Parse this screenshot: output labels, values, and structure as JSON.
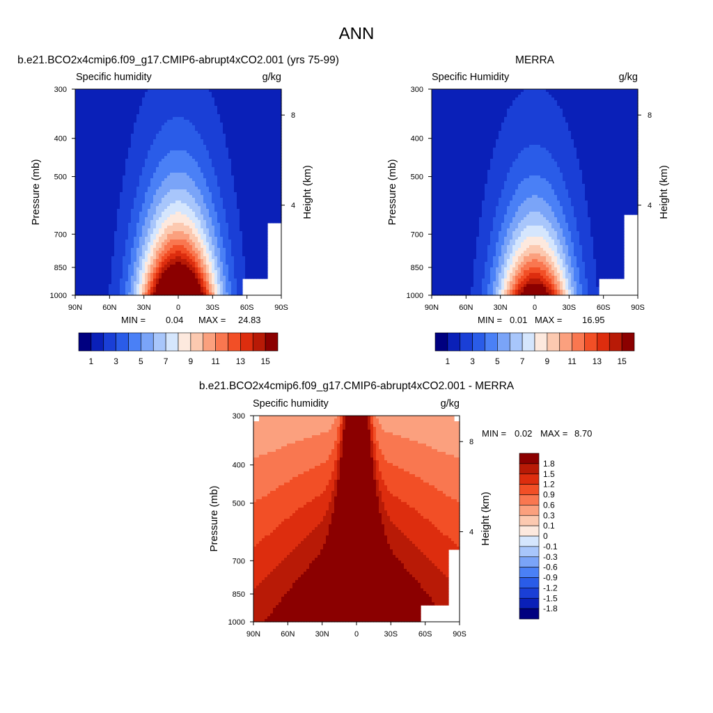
{
  "figure": {
    "title": "ANN"
  },
  "chart_data": [
    {
      "type": "heatmap",
      "kind": "filled-contour",
      "title": "b.e21.BCO2x4cmip6.f09_g17.CMIP6-abrupt4xCO2.001 (yrs 75-99)",
      "variable": "Specific humidity",
      "units": "g/kg",
      "ylabel": "Pressure (mb)",
      "y2label": "Height (km)",
      "x_ticks": [
        "90N",
        "60N",
        "30N",
        "0",
        "30S",
        "60S",
        "90S"
      ],
      "y_ticks": [
        300,
        400,
        500,
        700,
        850,
        1000
      ],
      "y2_ticks": [
        8,
        4
      ],
      "min_label": "MIN =",
      "min_value": "0.04",
      "max_label": "MAX =",
      "max_value": "24.83",
      "colorbar_labels": [
        "1",
        "3",
        "5",
        "7",
        "9",
        "11",
        "13",
        "15"
      ],
      "colorbar_colors": [
        "#000080",
        "#0a20b8",
        "#1a3fd6",
        "#2a5ce8",
        "#4a80f6",
        "#7aa4f8",
        "#a8c6fb",
        "#d5e6fd",
        "#fde9de",
        "#fcc9b0",
        "#fba07e",
        "#f97750",
        "#f24f26",
        "#dd2d0e",
        "#b81a06",
        "#8b0000"
      ],
      "surface_value": 22,
      "apex_pressure": 300,
      "half_width_deg": 42,
      "slope": 1.35
    },
    {
      "type": "heatmap",
      "kind": "filled-contour",
      "title": "MERRA",
      "variable": "Specific Humidity",
      "units": "g/kg",
      "ylabel": "Pressure (mb)",
      "y2label": "Height (km)",
      "x_ticks": [
        "90N",
        "60N",
        "30N",
        "0",
        "30S",
        "60S",
        "90S"
      ],
      "y_ticks": [
        300,
        400,
        500,
        700,
        850,
        1000
      ],
      "y2_ticks": [
        8,
        4
      ],
      "min_label": "MIN =",
      "min_value": "0.01",
      "max_label": "MAX =",
      "max_value": "16.95",
      "colorbar_labels": [
        "1",
        "3",
        "5",
        "7",
        "9",
        "11",
        "13",
        "15"
      ],
      "colorbar_colors": [
        "#000080",
        "#0a20b8",
        "#1a3fd6",
        "#2a5ce8",
        "#4a80f6",
        "#7aa4f8",
        "#a8c6fb",
        "#d5e6fd",
        "#fde9de",
        "#fcc9b0",
        "#fba07e",
        "#f97750",
        "#f24f26",
        "#dd2d0e",
        "#b81a06",
        "#8b0000"
      ],
      "surface_value": 16.5,
      "apex_pressure": 330,
      "half_width_deg": 40,
      "slope": 1.3
    },
    {
      "type": "heatmap",
      "kind": "filled-contour",
      "title": "b.e21.BCO2x4cmip6.f09_g17.CMIP6-abrupt4xCO2.001 - MERRA",
      "variable": "Specific humidity",
      "units": "g/kg",
      "ylabel": "Pressure (mb)",
      "y2label": "Height (km)",
      "x_ticks": [
        "90N",
        "60N",
        "30N",
        "0",
        "30S",
        "60S",
        "90S"
      ],
      "y_ticks": [
        300,
        400,
        500,
        700,
        850,
        1000
      ],
      "y2_ticks": [
        8,
        4
      ],
      "min_label": "MIN =",
      "min_value": "0.02",
      "max_label": "MAX =",
      "max_value": "8.70",
      "colorbar_labels": [
        "1.8",
        "1.5",
        "1.2",
        "0.9",
        "0.6",
        "0.3",
        "0.1",
        "0",
        "-0.1",
        "-0.3",
        "-0.6",
        "-0.9",
        "-1.2",
        "-1.5",
        "-1.8"
      ],
      "colorbar_colors": [
        "#8b0000",
        "#b81a06",
        "#dd2d0e",
        "#f24f26",
        "#f97750",
        "#fba07e",
        "#fcc9b0",
        "#fde9de",
        "#d5e6fd",
        "#a8c6fb",
        "#7aa4f8",
        "#4a80f6",
        "#2a5ce8",
        "#1a3fd6",
        "#0a20b8",
        "#000080"
      ]
    }
  ]
}
